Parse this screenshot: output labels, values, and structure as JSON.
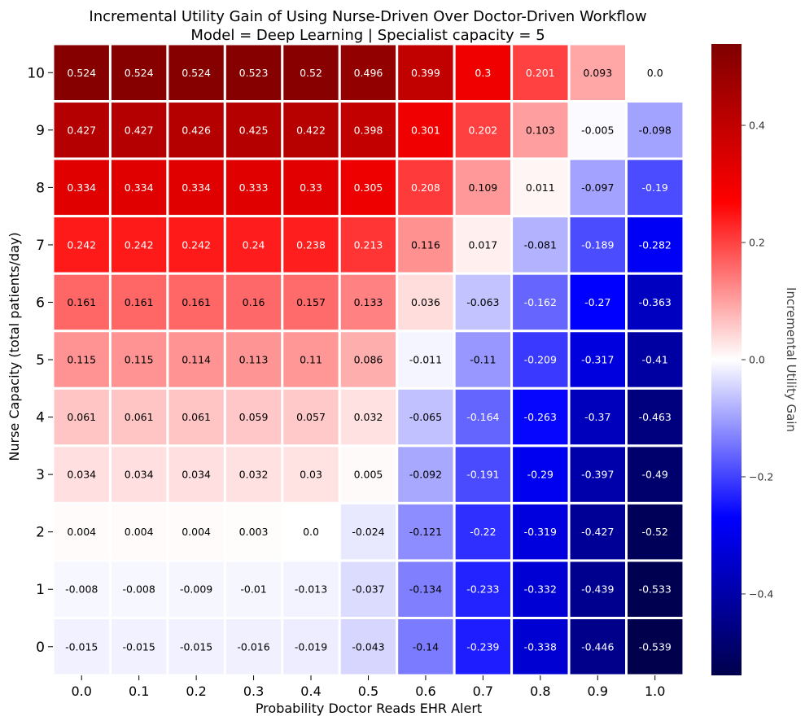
{
  "chart_data": {
    "type": "heatmap",
    "title_lines": [
      "Incremental Utility Gain of Using Nurse-Driven Over Doctor-Driven Workflow",
      "Model = Deep Learning | Specialist capacity = 5"
    ],
    "xlabel": "Probability Doctor Reads EHR Alert",
    "ylabel": "Nurse Capacity (total patients/day)",
    "x_categories": [
      "0.0",
      "0.1",
      "0.2",
      "0.3",
      "0.4",
      "0.5",
      "0.6",
      "0.7",
      "0.8",
      "0.9",
      "1.0"
    ],
    "y_categories": [
      "10",
      "9",
      "8",
      "7",
      "6",
      "5",
      "4",
      "3",
      "2",
      "1",
      "0"
    ],
    "values": [
      [
        "0.524",
        "0.524",
        "0.524",
        "0.523",
        "0.52",
        "0.496",
        "0.399",
        "0.3",
        "0.201",
        "0.093",
        "0.0"
      ],
      [
        "0.427",
        "0.427",
        "0.426",
        "0.425",
        "0.422",
        "0.398",
        "0.301",
        "0.202",
        "0.103",
        "-0.005",
        "-0.098"
      ],
      [
        "0.334",
        "0.334",
        "0.334",
        "0.333",
        "0.33",
        "0.305",
        "0.208",
        "0.109",
        "0.011",
        "-0.097",
        "-0.19"
      ],
      [
        "0.242",
        "0.242",
        "0.242",
        "0.24",
        "0.238",
        "0.213",
        "0.116",
        "0.017",
        "-0.081",
        "-0.189",
        "-0.282"
      ],
      [
        "0.161",
        "0.161",
        "0.161",
        "0.16",
        "0.157",
        "0.133",
        "0.036",
        "-0.063",
        "-0.162",
        "-0.27",
        "-0.363"
      ],
      [
        "0.115",
        "0.115",
        "0.114",
        "0.113",
        "0.11",
        "0.086",
        "-0.011",
        "-0.11",
        "-0.209",
        "-0.317",
        "-0.41"
      ],
      [
        "0.061",
        "0.061",
        "0.061",
        "0.059",
        "0.057",
        "0.032",
        "-0.065",
        "-0.164",
        "-0.263",
        "-0.37",
        "-0.463"
      ],
      [
        "0.034",
        "0.034",
        "0.034",
        "0.032",
        "0.03",
        "0.005",
        "-0.092",
        "-0.191",
        "-0.29",
        "-0.397",
        "-0.49"
      ],
      [
        "0.004",
        "0.004",
        "0.004",
        "0.003",
        "0.0",
        "-0.024",
        "-0.121",
        "-0.22",
        "-0.319",
        "-0.427",
        "-0.52"
      ],
      [
        "-0.008",
        "-0.008",
        "-0.009",
        "-0.01",
        "-0.013",
        "-0.037",
        "-0.134",
        "-0.233",
        "-0.332",
        "-0.439",
        "-0.533"
      ],
      [
        "-0.015",
        "-0.015",
        "-0.015",
        "-0.016",
        "-0.019",
        "-0.043",
        "-0.14",
        "-0.239",
        "-0.338",
        "-0.446",
        "-0.539"
      ]
    ],
    "colormap": "seismic",
    "colorbar": {
      "label": "Incremental Utility Gain",
      "range": [
        -0.539,
        0.539
      ],
      "ticks": [
        "0.4",
        "0.2",
        "0.0",
        "−0.2",
        "−0.4"
      ],
      "tick_values": [
        0.4,
        0.2,
        0.0,
        -0.2,
        -0.4
      ],
      "placement": "right"
    },
    "cell_border_color": "#ffffff",
    "grid": false
  }
}
